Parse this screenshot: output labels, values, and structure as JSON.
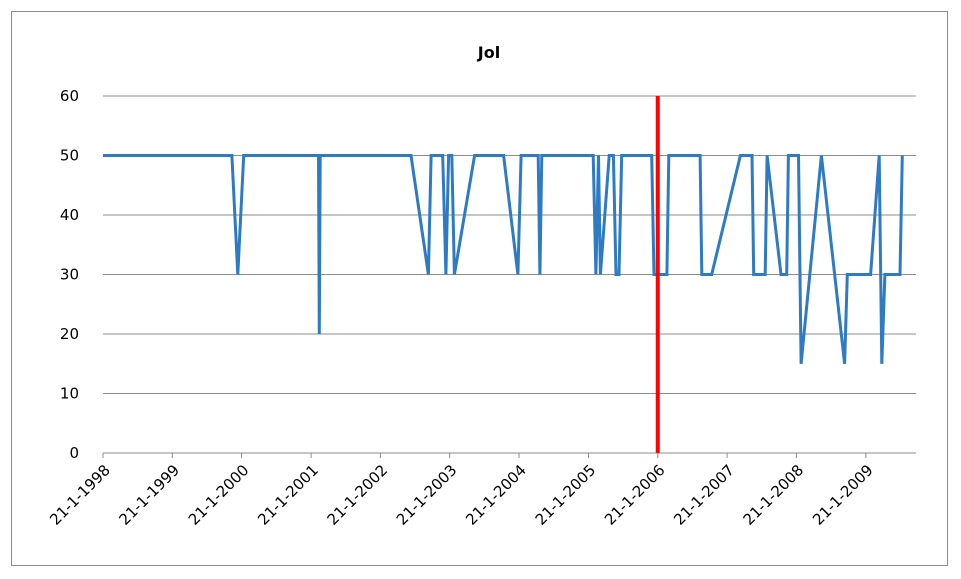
{
  "chart_data": {
    "type": "line",
    "title": "Jol",
    "xlabel": "",
    "ylabel": "",
    "ylim": [
      0,
      60
    ],
    "yticks": [
      0,
      10,
      20,
      30,
      40,
      50,
      60
    ],
    "grid": "horizontal",
    "legend": "none",
    "xticks": [
      "21-1-1998",
      "21-1-1999",
      "21-1-2000",
      "21-1-2001",
      "21-1-2002",
      "21-1-2003",
      "21-1-2004",
      "21-1-2005",
      "21-1-2006",
      "21-1-2007",
      "21-1-2008",
      "21-1-2009"
    ],
    "xlim": [
      "21-1-1998",
      "1-8-2009"
    ],
    "series": [
      {
        "color": "#2e7bc4",
        "points": [
          [
            "21-1-1998",
            50
          ],
          [
            "1-12-1999",
            50
          ],
          [
            "1-1-2000",
            30
          ],
          [
            "1-2-2000",
            50
          ],
          [
            "1-9-2000",
            50
          ],
          [
            "1-3-2001",
            50
          ],
          [
            "5-3-2001",
            20
          ],
          [
            "10-3-2001",
            50
          ],
          [
            "1-7-2002",
            50
          ],
          [
            "1-10-2002",
            30
          ],
          [
            "15-10-2002",
            50
          ],
          [
            "15-12-2002",
            50
          ],
          [
            "1-1-2003",
            30
          ],
          [
            "15-1-2003",
            50
          ],
          [
            "1-2-2003",
            50
          ],
          [
            "15-2-2003",
            30
          ],
          [
            "1-6-2003",
            50
          ],
          [
            "1-11-2003",
            50
          ],
          [
            "15-1-2004",
            30
          ],
          [
            "1-2-2004",
            50
          ],
          [
            "1-5-2004",
            50
          ],
          [
            "10-5-2004",
            30
          ],
          [
            "20-5-2004",
            50
          ],
          [
            "15-2-2005",
            50
          ],
          [
            "1-3-2005",
            30
          ],
          [
            "15-3-2005",
            50
          ],
          [
            "25-3-2005",
            30
          ],
          [
            "10-5-2005",
            50
          ],
          [
            "1-6-2005",
            50
          ],
          [
            "15-6-2005",
            30
          ],
          [
            "1-7-2005",
            30
          ],
          [
            "15-7-2005",
            50
          ],
          [
            "20-12-2005",
            50
          ],
          [
            "1-1-2006",
            30
          ],
          [
            "10-3-2006",
            30
          ],
          [
            "20-3-2006",
            50
          ],
          [
            "1-9-2006",
            50
          ],
          [
            "10-9-2006",
            30
          ],
          [
            "1-11-2006",
            30
          ],
          [
            "1-4-2007",
            50
          ],
          [
            "1-6-2007",
            50
          ],
          [
            "10-6-2007",
            30
          ],
          [
            "10-8-2007",
            30
          ],
          [
            "20-8-2007",
            50
          ],
          [
            "1-11-2007",
            30
          ],
          [
            "1-12-2007",
            30
          ],
          [
            "10-12-2007",
            50
          ],
          [
            "1-2-2008",
            50
          ],
          [
            "15-2-2008",
            15
          ],
          [
            "1-6-2008",
            50
          ],
          [
            "1-10-2008",
            15
          ],
          [
            "15-10-2008",
            30
          ],
          [
            "1-12-2008",
            30
          ],
          [
            "15-2-2009",
            30
          ],
          [
            "1-4-2009",
            50
          ],
          [
            "15-4-2009",
            15
          ],
          [
            "1-5-2009",
            30
          ],
          [
            "1-7-2009",
            30
          ],
          [
            "20-7-2009",
            30
          ],
          [
            "1-8-2009",
            50
          ]
        ]
      }
    ],
    "marker_line": {
      "x": "21-1-2006",
      "y_range": [
        0,
        60
      ],
      "color": "#ff0000"
    }
  }
}
